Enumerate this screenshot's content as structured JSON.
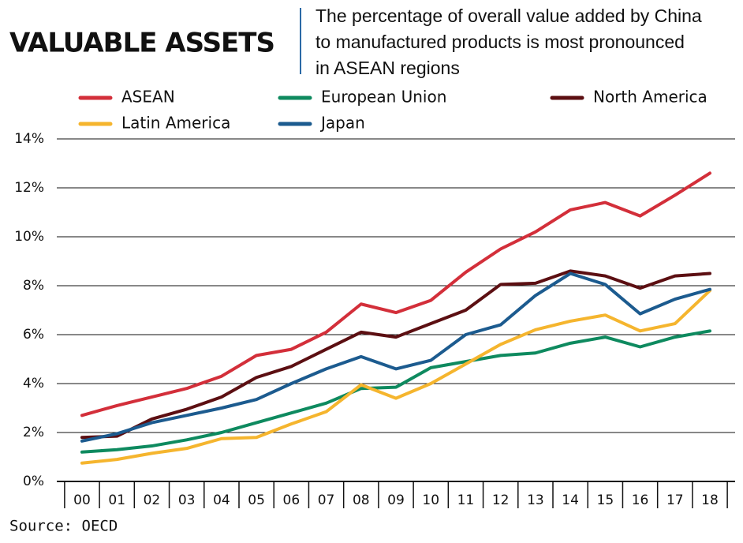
{
  "chart_data": {
    "type": "line",
    "title": "VALUABLE ASSETS",
    "subtitle": [
      "The percentage of overall value added by China",
      "to manufactured products is most pronounced",
      "in ASEAN regions"
    ],
    "source": "Source: OECD",
    "categories": [
      "00",
      "01",
      "02",
      "03",
      "04",
      "05",
      "06",
      "07",
      "08",
      "09",
      "10",
      "11",
      "12",
      "13",
      "14",
      "15",
      "16",
      "17",
      "18"
    ],
    "series": [
      {
        "name": "ASEAN",
        "color": "#d32f3a",
        "values": [
          2.7,
          3.1,
          3.45,
          3.8,
          4.3,
          5.15,
          5.4,
          6.1,
          7.25,
          6.9,
          7.4,
          8.55,
          9.5,
          10.2,
          11.1,
          11.4,
          10.85,
          11.7,
          12.6
        ]
      },
      {
        "name": "European Union",
        "color": "#0e8a5f",
        "values": [
          1.2,
          1.3,
          1.45,
          1.7,
          2.0,
          2.4,
          2.8,
          3.2,
          3.8,
          3.85,
          4.65,
          4.9,
          5.15,
          5.25,
          5.65,
          5.9,
          5.5,
          5.9,
          6.15
        ]
      },
      {
        "name": "North America",
        "color": "#5c0f12",
        "values": [
          1.8,
          1.85,
          2.55,
          2.95,
          3.45,
          4.25,
          4.7,
          5.4,
          6.1,
          5.9,
          6.45,
          7.0,
          8.05,
          8.1,
          8.6,
          8.4,
          7.9,
          8.4,
          8.5
        ]
      },
      {
        "name": "Latin America",
        "color": "#f5b52e",
        "values": [
          0.75,
          0.9,
          1.15,
          1.35,
          1.75,
          1.8,
          2.35,
          2.85,
          3.95,
          3.4,
          4.0,
          4.8,
          5.6,
          6.2,
          6.55,
          6.8,
          6.15,
          6.45,
          7.8
        ]
      },
      {
        "name": "Japan",
        "color": "#1c5b8f",
        "values": [
          1.65,
          1.95,
          2.4,
          2.7,
          3.0,
          3.35,
          4.0,
          4.6,
          5.1,
          4.6,
          4.95,
          6.0,
          6.4,
          7.6,
          8.5,
          8.05,
          6.85,
          7.45,
          7.85
        ]
      }
    ],
    "ylim": [
      0,
      14
    ],
    "yticks": [
      {
        "value": 0,
        "label": "0%"
      },
      {
        "value": 2,
        "label": "2%"
      },
      {
        "value": 4,
        "label": "4%"
      },
      {
        "value": 6,
        "label": "6%"
      },
      {
        "value": 8,
        "label": "8%"
      },
      {
        "value": 10,
        "label": "10%"
      },
      {
        "value": 12,
        "label": "12%"
      },
      {
        "value": 14,
        "label": "14%"
      }
    ],
    "grid": true
  }
}
